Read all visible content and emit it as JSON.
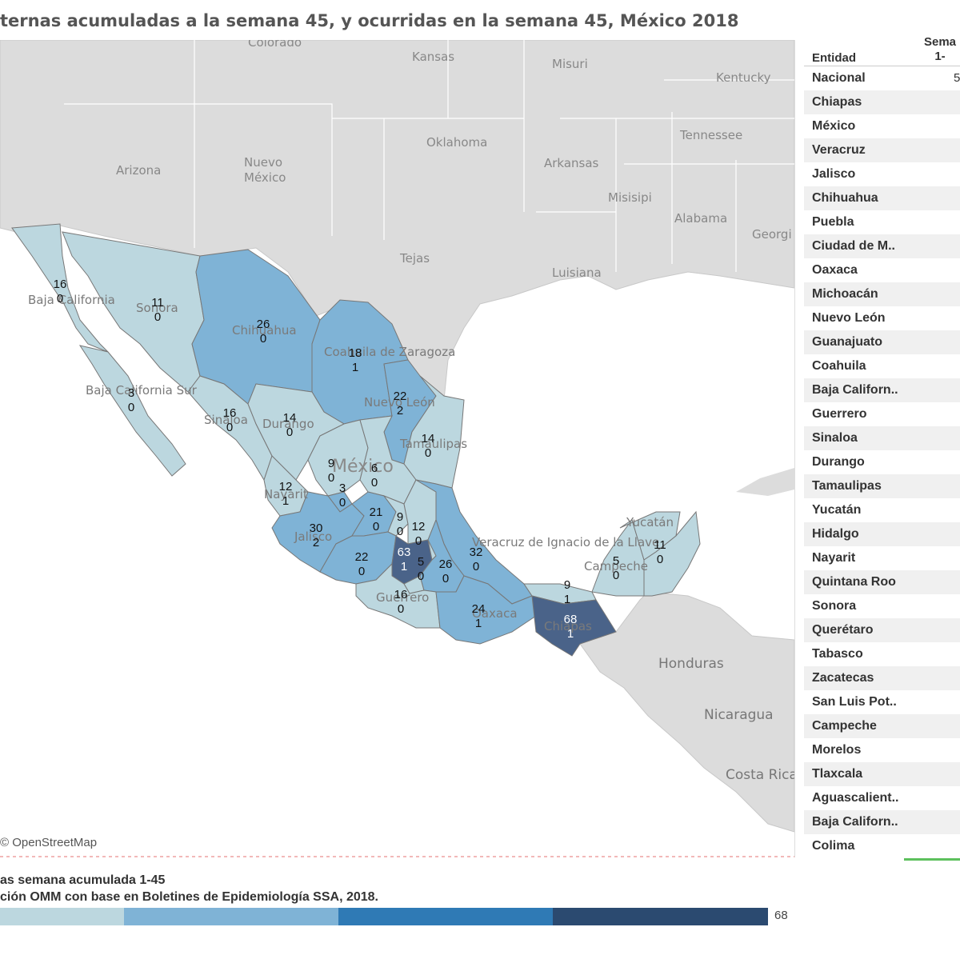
{
  "title": "ternas acumuladas a la semana 45, y ocurridas en la semana 45, México 2018",
  "colors": {
    "level1": "#bcd7df",
    "level2": "#7fb3d6",
    "level3": "#2f7ab5",
    "level4": "#4a6389",
    "land": "#dcdcdc",
    "water": "#ffffff"
  },
  "map": {
    "attribution": "© OpenStreetMap",
    "us_labels": [
      "Colorado",
      "Kansas",
      "Misuri",
      "Kentucky",
      "Arizona",
      "Nuevo México",
      "Oklahoma",
      "Arkansas",
      "Tennessee",
      "Misisipi",
      "Alabama",
      "Georgi",
      "Tejas",
      "Luisiana"
    ],
    "central_america_labels": [
      "Honduras",
      "Nicaragua",
      "Costa Rica"
    ],
    "state_labels": [
      "Baja California",
      "Sonora",
      "Chihuahua",
      "Coahuila de Zaragoza",
      "Nuevo León",
      "Baja California Sur",
      "Sinaloa",
      "Durango",
      "Tamaulipas",
      "México",
      "Nayarit",
      "Jalisco",
      "Veracruz de Ignacio de la Llave",
      "Guerrero",
      "Oaxaca",
      "Chiapas",
      "Campeche",
      "Yucatán"
    ],
    "markers": [
      {
        "state": "Baja California",
        "accum": "16",
        "week": "0"
      },
      {
        "state": "Sonora",
        "accum": "11",
        "week": "0"
      },
      {
        "state": "Chihuahua",
        "accum": "26",
        "week": "0"
      },
      {
        "state": "Coahuila",
        "accum": "18",
        "week": "1"
      },
      {
        "state": "Nuevo León",
        "accum": "22",
        "week": "2"
      },
      {
        "state": "Baja California Sur",
        "accum": "3",
        "week": "0"
      },
      {
        "state": "Sinaloa",
        "accum": "16",
        "week": "0"
      },
      {
        "state": "Durango",
        "accum": "14",
        "week": "0"
      },
      {
        "state": "Tamaulipas",
        "accum": "14",
        "week": "0"
      },
      {
        "state": "Zacatecas",
        "accum": "9",
        "week": "0"
      },
      {
        "state": "San Luis Potosí",
        "accum": "6",
        "week": "0"
      },
      {
        "state": "Nayarit",
        "accum": "12",
        "week": "1"
      },
      {
        "state": "Aguascalientes",
        "accum": "3",
        "week": "0"
      },
      {
        "state": "Guanajuato",
        "accum": "21",
        "week": "0"
      },
      {
        "state": "Querétaro",
        "accum": "9",
        "week": "0"
      },
      {
        "state": "Hidalgo",
        "accum": "12",
        "week": "0"
      },
      {
        "state": "Jalisco",
        "accum": "30",
        "week": "2"
      },
      {
        "state": "Veracruz",
        "accum": "32",
        "week": "0"
      },
      {
        "state": "México",
        "accum": "63",
        "week": "1"
      },
      {
        "state": "Tlaxcala",
        "accum": "5",
        "week": "0"
      },
      {
        "state": "Michoacán",
        "accum": "22",
        "week": "0"
      },
      {
        "state": "Puebla",
        "accum": "26",
        "week": "0"
      },
      {
        "state": "Guerrero",
        "accum": "16",
        "week": "0"
      },
      {
        "state": "Oaxaca",
        "accum": "24",
        "week": "1"
      },
      {
        "state": "Tabasco",
        "accum": "9",
        "week": "1"
      },
      {
        "state": "Chiapas",
        "accum": "68",
        "week": "1"
      },
      {
        "state": "Campeche",
        "accum": "5",
        "week": "0"
      },
      {
        "state": "Yucatán",
        "accum": "11",
        "week": "0"
      }
    ]
  },
  "table": {
    "header_entity": "Entidad",
    "header_week_line1": "Sema",
    "header_week_line2": "1-",
    "rows": [
      {
        "name": "Nacional",
        "value": "5"
      },
      {
        "name": "Chiapas",
        "value": ""
      },
      {
        "name": "México",
        "value": ""
      },
      {
        "name": "Veracruz",
        "value": ""
      },
      {
        "name": "Jalisco",
        "value": ""
      },
      {
        "name": "Chihuahua",
        "value": ""
      },
      {
        "name": "Puebla",
        "value": ""
      },
      {
        "name": "Ciudad de M..",
        "value": ""
      },
      {
        "name": "Oaxaca",
        "value": ""
      },
      {
        "name": "Michoacán",
        "value": ""
      },
      {
        "name": "Nuevo León",
        "value": ""
      },
      {
        "name": "Guanajuato",
        "value": ""
      },
      {
        "name": "Coahuila",
        "value": ""
      },
      {
        "name": "Baja Californ..",
        "value": ""
      },
      {
        "name": "Guerrero",
        "value": ""
      },
      {
        "name": "Sinaloa",
        "value": ""
      },
      {
        "name": "Durango",
        "value": ""
      },
      {
        "name": "Tamaulipas",
        "value": ""
      },
      {
        "name": "Yucatán",
        "value": ""
      },
      {
        "name": "Hidalgo",
        "value": ""
      },
      {
        "name": "Nayarit",
        "value": ""
      },
      {
        "name": "Quintana Roo",
        "value": ""
      },
      {
        "name": "Sonora",
        "value": ""
      },
      {
        "name": "Querétaro",
        "value": ""
      },
      {
        "name": "Tabasco",
        "value": ""
      },
      {
        "name": "Zacatecas",
        "value": ""
      },
      {
        "name": "San Luis Pot..",
        "value": ""
      },
      {
        "name": "Campeche",
        "value": ""
      },
      {
        "name": "Morelos",
        "value": ""
      },
      {
        "name": "Tlaxcala",
        "value": ""
      },
      {
        "name": "Aguascalient..",
        "value": ""
      },
      {
        "name": "Baja Californ..",
        "value": ""
      },
      {
        "name": "Colima",
        "value": ""
      }
    ]
  },
  "legend": {
    "title": "as semana acumulada 1-45",
    "source": "ción OMM con base en Boletines de Epidemiología SSA, 2018.",
    "max_label": "68",
    "bins": [
      "#bcd7df",
      "#7fb3d6",
      "#2f7ab5",
      "#2b4a70"
    ]
  }
}
